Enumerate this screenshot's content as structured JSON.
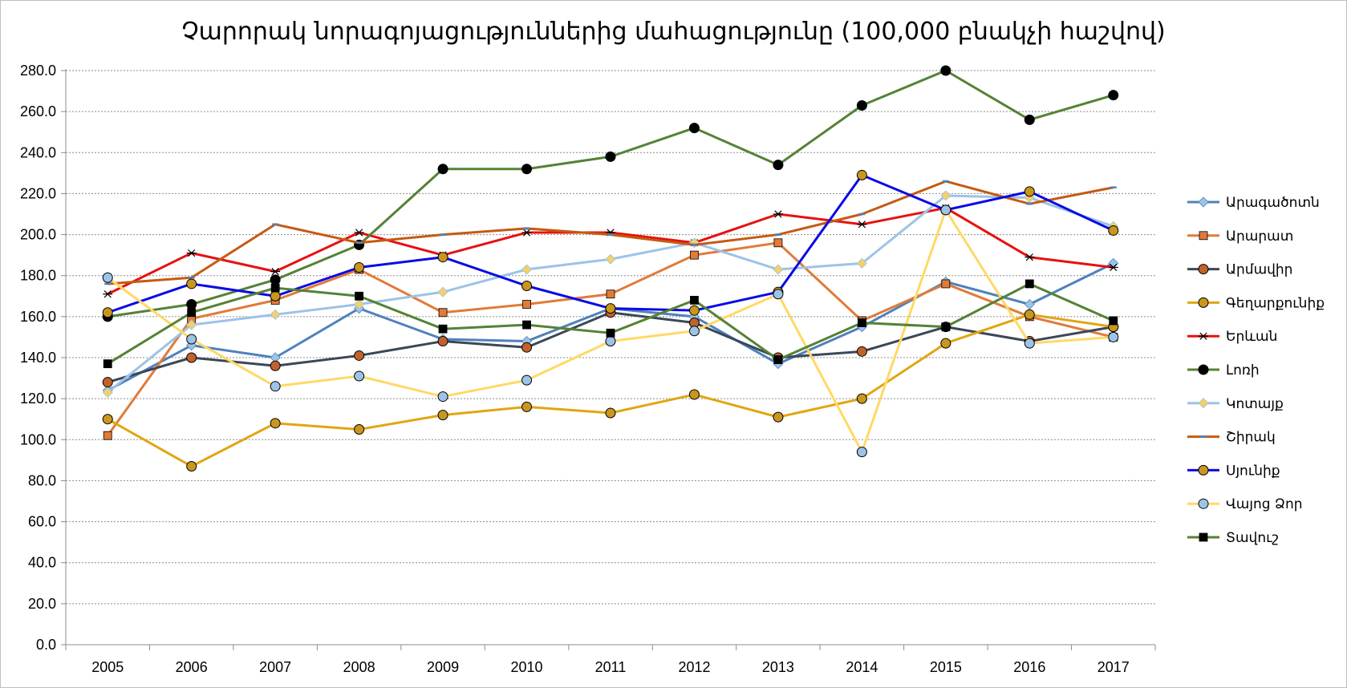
{
  "chart_data": {
    "type": "line",
    "title": "Չարորակ նորագոյացություններից մահացությունը (100,000 բնակչի հաշվով)",
    "xlabel": "",
    "ylabel": "",
    "ylim": [
      0,
      280
    ],
    "y_ticks": [
      "0.0",
      "20.0",
      "40.0",
      "60.0",
      "80.0",
      "100.0",
      "120.0",
      "140.0",
      "160.0",
      "180.0",
      "200.0",
      "220.0",
      "240.0",
      "260.0",
      "280.0"
    ],
    "grid": "horizontal",
    "legend_position": "right",
    "categories": [
      "2005",
      "2006",
      "2007",
      "2008",
      "2009",
      "2010",
      "2011",
      "2012",
      "2013",
      "2014",
      "2015",
      "2016",
      "2017"
    ],
    "series": [
      {
        "name": "Արագածոտն",
        "color": "#4f81bd",
        "marker": "diamond",
        "markerFill": "#9dc3e6",
        "values": [
          124,
          146,
          140,
          164,
          149,
          148,
          164,
          160,
          137,
          155,
          177,
          166,
          186
        ]
      },
      {
        "name": "Արարատ",
        "color": "#e07b39",
        "marker": "square",
        "markerFill": "#e07b39",
        "values": [
          102,
          159,
          168,
          183,
          162,
          166,
          171,
          190,
          196,
          158,
          176,
          160,
          150
        ]
      },
      {
        "name": "Արմավիր",
        "color": "#3b4757",
        "marker": "circle",
        "markerFill": "#c0622c",
        "values": [
          128,
          140,
          136,
          141,
          148,
          145,
          162,
          157,
          140,
          143,
          155,
          148,
          155
        ]
      },
      {
        "name": "Գեղարքունիք",
        "color": "#e0a612",
        "marker": "circle",
        "markerFill": "#c9961e",
        "values": [
          110,
          87,
          108,
          105,
          112,
          116,
          113,
          122,
          111,
          120,
          147,
          161,
          155
        ]
      },
      {
        "name": "Երևան",
        "color": "#e81010",
        "marker": "star",
        "markerFill": "#000000",
        "values": [
          171,
          191,
          182,
          201,
          190,
          201,
          201,
          196,
          210,
          205,
          213,
          189,
          184
        ]
      },
      {
        "name": "Լոռի",
        "color": "#548235",
        "marker": "circle",
        "markerFill": "#000000",
        "values": [
          160,
          166,
          178,
          195,
          232,
          232,
          238,
          252,
          234,
          263,
          280,
          256,
          268
        ]
      },
      {
        "name": "Կոտայք",
        "color": "#9dc3e6",
        "marker": "diamond",
        "markerFill": "#f2d06b",
        "values": [
          123,
          156,
          161,
          166,
          172,
          183,
          188,
          196,
          183,
          186,
          219,
          218,
          204
        ]
      },
      {
        "name": "Շիրակ",
        "color": "#c55a11",
        "marker": "dash",
        "markerFill": "#4f81bd",
        "values": [
          176,
          179,
          205,
          196,
          200,
          203,
          200,
          195,
          200,
          210,
          226,
          215,
          223
        ]
      },
      {
        "name": "Սյունիք",
        "color": "#0a0ae6",
        "marker": "circle",
        "markerFill": "#c9961e",
        "values": [
          162,
          176,
          170,
          184,
          189,
          175,
          164,
          163,
          172,
          229,
          212,
          221,
          202
        ]
      },
      {
        "name": "Վայոց Ձոր",
        "color": "#ffd966",
        "marker": "circle",
        "markerFill": "#9dc3e6",
        "values": [
          179,
          149,
          126,
          131,
          121,
          129,
          148,
          153,
          171,
          94,
          212,
          147,
          150
        ]
      },
      {
        "name": "Տավուշ",
        "color": "#548235",
        "marker": "square",
        "markerFill": "#000000",
        "values": [
          137,
          162,
          174,
          170,
          154,
          156,
          152,
          168,
          139,
          157,
          155,
          176,
          158
        ]
      }
    ]
  }
}
